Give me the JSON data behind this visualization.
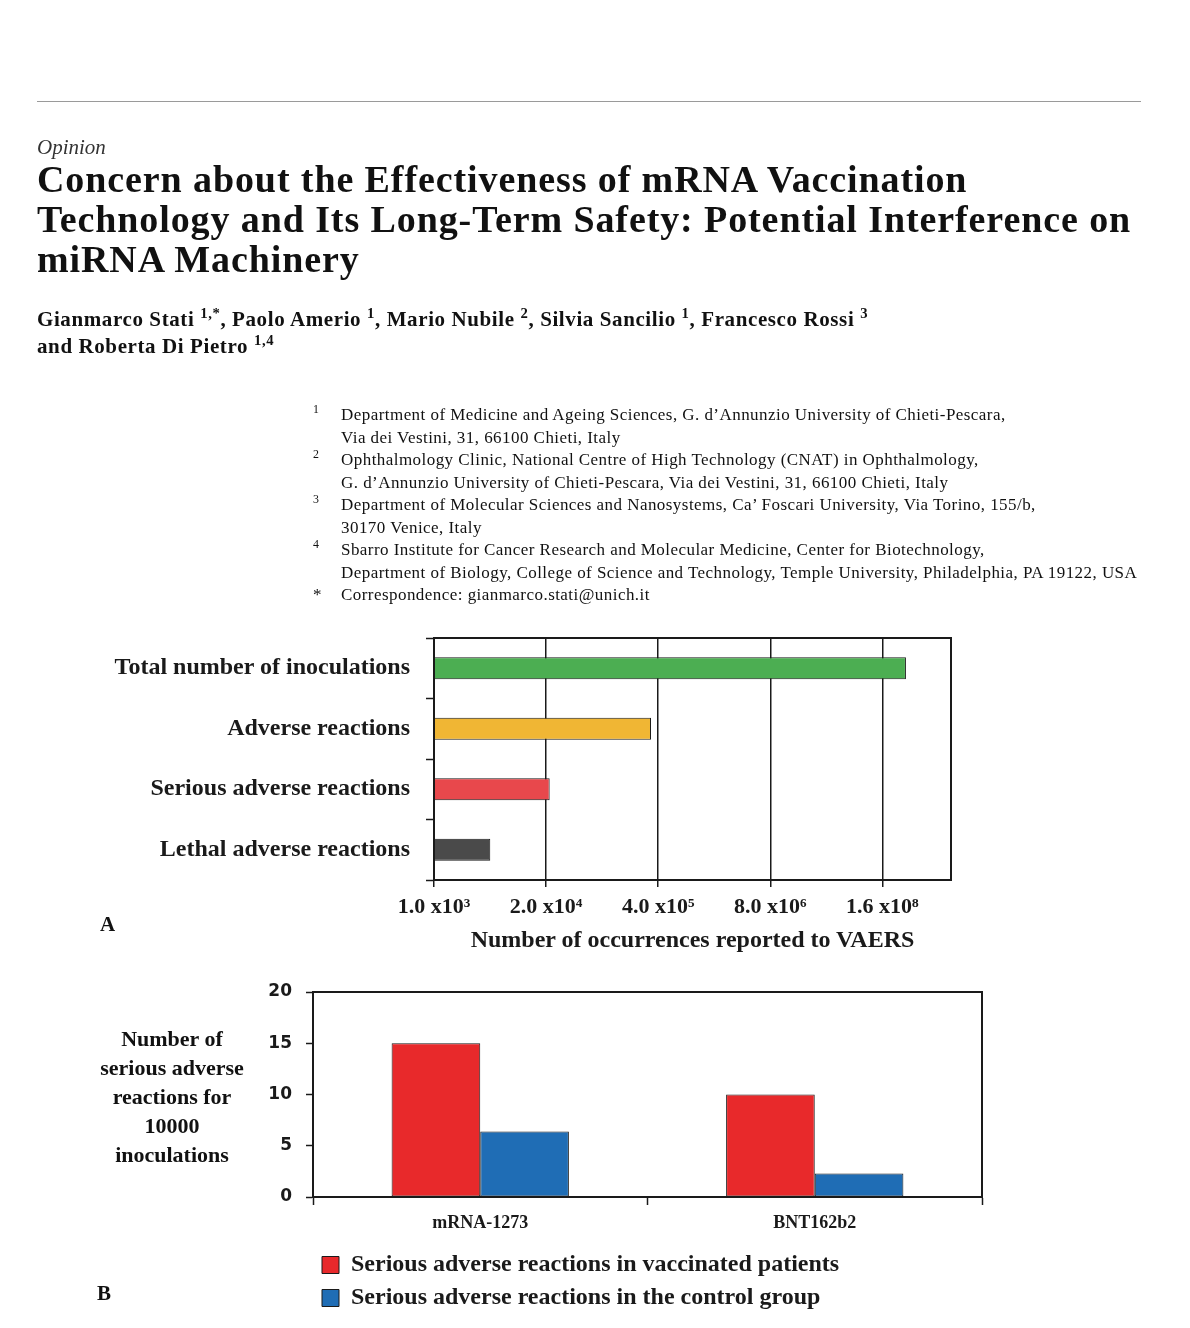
{
  "chart_data": [
    {
      "type": "bar",
      "orientation": "horizontal",
      "title": "Concern about the Effectiveness of mRNA Vaccination\nTechnology and Its Long-Term Safety: Potential Interference on\nmiRNA Machinery",
      "annotations": [
        "Opinion",
        "Gianmarco Stati $^{1,*}$, Paolo Amerio $^{1}$, Mario Nubile $^{2}$, Silvia Sancilio $^{1}$, Francesco Rossi $^{3}$\nand Roberta Di Pietro $^{1,4}$",
        "$^{1}$ Department of Medicine and Ageing Sciences, G. d’Annunzio University of Chieti-Pescara,\nVia dei Vestini, 31, 66100 Chieti, Italy",
        "$^{2}$ Ophthalmology Clinic, National Centre of High Technology (CNAT) in Ophthalmology,\nG. d’Annunzio University of Chieti-Pescara, Via dei Vestini, 31, 66100 Chieti, Italy",
        "$^{3}$ Department of Molecular Sciences and Nanosystems, Ca’ Foscari University, Via Torino, 155/b,\n30170 Venice, Italy",
        "$^{4}$ Sbarro Institute for Cancer Research and Molecular Medicine, Center for Biotechnology,\nDepartment of Biology, College of Science and Technology, Temple University, Philadelphia, PA 19122, USA",
        "* Correspondence: gianmarco.stati@unich.it",
        "A"
      ],
      "categories": [
        "Total number of inoculations",
        "Adverse reactions",
        "Serious adverse reactions",
        "Lethal adverse reactions"
      ],
      "values": [
        300000000,
        330000,
        22000,
        4500
      ],
      "colors": [
        "#4cae52",
        "#f0b634",
        "#e8484c",
        "#4a4a4a"
      ],
      "xlabel": "Number of occurrences reported to VAERS",
      "log": "x",
      "xlim": [
        1000,
        1000000000
      ],
      "xticks": [
        {
          "value": 1000,
          "label": "1.0 x10³"
        },
        {
          "value": 20000,
          "label": "2.0 x10⁴"
        },
        {
          "value": 400000,
          "label": "4.0 x10⁵"
        },
        {
          "value": 8000000,
          "label": "8.0 x10⁶"
        },
        {
          "value": 160000000,
          "label": "1.6 x10⁸"
        }
      ],
      "grid": "x"
    },
    {
      "type": "bar",
      "categories": [
        "mRNA-1273",
        "BNT162b2"
      ],
      "series": [
        {
          "name": "Serious adverse reactions in vaccinated patients",
          "color": "#e8292b",
          "values": [
            15,
            10
          ]
        },
        {
          "name": "Serious adverse reactions in the control group",
          "color": "#1f6db5",
          "values": [
            6.4,
            2.3
          ]
        }
      ],
      "ylabel": "Number of serious adverse reactions for 10000 inoculations",
      "ylim": [
        0,
        20
      ],
      "yticks": [
        0,
        5,
        10,
        15,
        20
      ],
      "grid": false,
      "legend": "bottom",
      "annotations": [
        "B"
      ]
    }
  ]
}
